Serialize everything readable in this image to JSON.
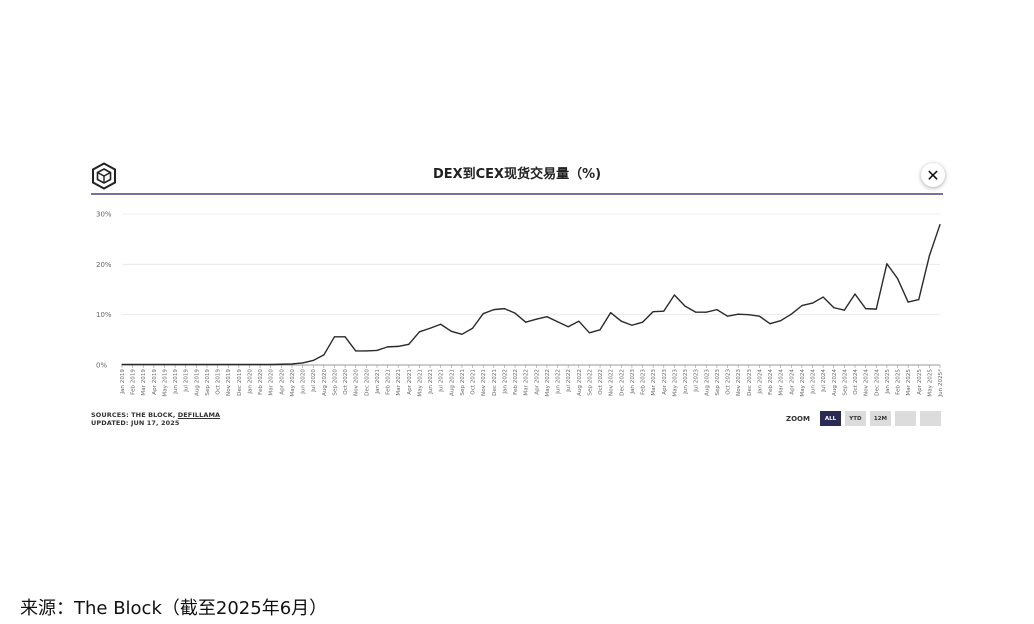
{
  "header": {
    "title": "DEX到CEX现货交易量（%)",
    "close_label": "✕",
    "logo_icon": "the-block-cube-logo"
  },
  "source": {
    "sources_prefix": "SOURCES: THE BLOCK, ",
    "sources_link": "DEFILLAMA",
    "updated": "UPDATED: JUN 17, 2025"
  },
  "zoom": {
    "label": "ZOOM",
    "buttons": [
      "ALL",
      "YTD",
      "12M",
      "",
      ""
    ],
    "active": "ALL",
    "active_color": "#2b2a55"
  },
  "caption": "来源：The Block（截至2025年6月）",
  "colors": {
    "line": "#2a2a2a",
    "title_rule": "#7b6f9c",
    "grid": "#e6e6e6",
    "axis": "#999999"
  },
  "chart_data": {
    "type": "line",
    "title": "DEX到CEX现货交易量（%)",
    "xlabel": "",
    "ylabel": "",
    "ylim": [
      0,
      30
    ],
    "y_ticks": [
      "0%",
      "10%",
      "20%",
      "30%"
    ],
    "grid": true,
    "legend": "none",
    "categories": [
      "Jan 2019",
      "Feb 2019",
      "Mar 2019",
      "Apr 2019",
      "May 2019",
      "Jun 2019",
      "Jul 2019",
      "Aug 2019",
      "Sep 2019",
      "Oct 2019",
      "Nov 2019",
      "Dec 2019",
      "Jan 2020",
      "Feb 2020",
      "Mar 2020",
      "Apr 2020",
      "May 2020",
      "Jun 2020",
      "Jul 2020",
      "Aug 2020",
      "Sep 2020",
      "Oct 2020",
      "Nov 2020",
      "Dec 2020",
      "Jan 2021",
      "Feb 2021",
      "Mar 2021",
      "Apr 2021",
      "May 2021",
      "Jun 2021",
      "Jul 2021",
      "Aug 2021",
      "Sep 2021",
      "Oct 2021",
      "Nov 2021",
      "Dec 2021",
      "Jan 2022",
      "Feb 2022",
      "Mar 2022",
      "Apr 2022",
      "May 2022",
      "Jun 2022",
      "Jul 2022",
      "Aug 2022",
      "Sep 2022",
      "Oct 2022",
      "Nov 2022",
      "Dec 2022",
      "Jan 2023",
      "Feb 2023",
      "Mar 2023",
      "Apr 2023",
      "May 2023",
      "Jun 2023",
      "Jul 2023",
      "Aug 2023",
      "Sep 2023",
      "Oct 2023",
      "Nov 2023",
      "Dec 2023",
      "Jan 2024",
      "Feb 2024",
      "Mar 2024",
      "Apr 2024",
      "May 2024",
      "Jun 2024",
      "Jul 2024",
      "Aug 2024",
      "Sep 2024",
      "Oct 2024",
      "Nov 2024",
      "Dec 2024",
      "Jan 2025",
      "Feb 2025",
      "Mar 2025",
      "Apr 2025",
      "May 2025",
      "Jun 2025*"
    ],
    "series": [
      {
        "values": [
          0.1,
          0.1,
          0.1,
          0.1,
          0.1,
          0.1,
          0.1,
          0.1,
          0.1,
          0.1,
          0.1,
          0.1,
          0.1,
          0.1,
          0.1,
          0.15,
          0.2,
          0.4,
          0.9,
          2.0,
          5.6,
          5.6,
          2.8,
          2.8,
          2.9,
          3.6,
          3.7,
          4.1,
          6.6,
          7.3,
          8.1,
          6.7,
          6.1,
          7.3,
          10.2,
          11.0,
          11.2,
          10.3,
          8.5,
          9.1,
          9.6,
          8.6,
          7.6,
          8.7,
          6.4,
          7.0,
          10.4,
          8.7,
          7.9,
          8.5,
          10.6,
          10.7,
          13.9,
          11.7,
          10.5,
          10.5,
          11.0,
          9.7,
          10.1,
          10.0,
          9.7,
          8.2,
          8.8,
          10.1,
          11.8,
          12.3,
          13.5,
          11.4,
          10.9,
          14.1,
          11.2,
          11.1,
          20.1,
          17.2,
          12.5,
          13.0,
          21.7,
          27.9
        ]
      }
    ]
  }
}
